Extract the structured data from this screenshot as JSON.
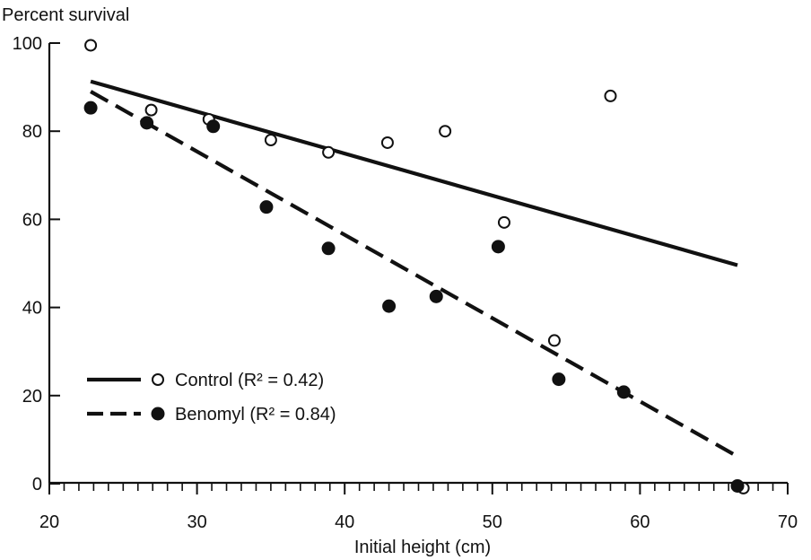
{
  "chart_data": {
    "type": "scatter",
    "ylabel": "Percent survival",
    "xlabel": "Initial height (cm)",
    "xlim": [
      20,
      70
    ],
    "ylim": [
      0,
      100
    ],
    "x_ticks": [
      20,
      30,
      40,
      50,
      60,
      70
    ],
    "y_ticks": [
      0,
      20,
      40,
      60,
      80,
      100
    ],
    "x_minor_step": 1,
    "grid": false,
    "legend_placement": "lower-left",
    "series": [
      {
        "name": "Control (R² = 0.42)",
        "marker": "open-circle",
        "line_style": "solid",
        "color": "#111111",
        "points": [
          {
            "x": 22.8,
            "y": 99.5
          },
          {
            "x": 26.9,
            "y": 84.8
          },
          {
            "x": 30.8,
            "y": 82.7
          },
          {
            "x": 35.0,
            "y": 78.0
          },
          {
            "x": 38.9,
            "y": 75.2
          },
          {
            "x": 42.9,
            "y": 77.4
          },
          {
            "x": 46.8,
            "y": 80.0
          },
          {
            "x": 50.8,
            "y": 59.3
          },
          {
            "x": 54.2,
            "y": 32.5
          },
          {
            "x": 58.0,
            "y": 88.0
          },
          {
            "x": 67.0,
            "y": -1.0
          }
        ],
        "fit": {
          "x": [
            22.8,
            66.6
          ],
          "y": [
            91.3,
            49.6
          ]
        }
      },
      {
        "name": "Benomyl (R² = 0.84)",
        "marker": "filled-circle",
        "line_style": "dashed",
        "color": "#111111",
        "points": [
          {
            "x": 22.8,
            "y": 85.3
          },
          {
            "x": 26.6,
            "y": 81.9
          },
          {
            "x": 31.1,
            "y": 81.1
          },
          {
            "x": 34.7,
            "y": 62.8
          },
          {
            "x": 38.9,
            "y": 53.4
          },
          {
            "x": 43.0,
            "y": 40.3
          },
          {
            "x": 46.2,
            "y": 42.5
          },
          {
            "x": 50.4,
            "y": 53.8
          },
          {
            "x": 54.5,
            "y": 23.7
          },
          {
            "x": 58.9,
            "y": 20.8
          },
          {
            "x": 66.6,
            "y": -0.5
          }
        ],
        "fit": {
          "x": [
            22.8,
            66.6
          ],
          "y": [
            89.0,
            6.2
          ]
        }
      }
    ]
  }
}
